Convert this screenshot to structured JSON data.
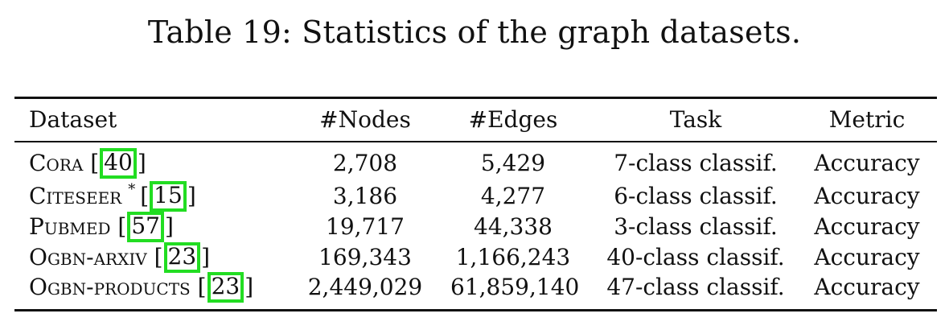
{
  "caption": "Table 19: Statistics of the graph datasets.",
  "columns": {
    "dataset": "Dataset",
    "nodes": "#Nodes",
    "edges": "#Edges",
    "task": "Task",
    "metric": "Metric"
  },
  "rows": [
    {
      "name": "Cora",
      "sup": "",
      "cite": "40",
      "nodes": "2,708",
      "edges": "5,429",
      "task": "7-class classif.",
      "metric": "Accuracy"
    },
    {
      "name": "Citeseer",
      "sup": "*",
      "cite": "15",
      "nodes": "3,186",
      "edges": "4,277",
      "task": "6-class classif.",
      "metric": "Accuracy"
    },
    {
      "name": "Pubmed",
      "sup": "",
      "cite": "57",
      "nodes": "19,717",
      "edges": "44,338",
      "task": "3-class classif.",
      "metric": "Accuracy"
    },
    {
      "name": "Ogbn-arxiv",
      "sup": "",
      "cite": "23",
      "nodes": "169,343",
      "edges": "1,166,243",
      "task": "40-class classif.",
      "metric": "Accuracy"
    },
    {
      "name": "Ogbn-products",
      "sup": "",
      "cite": "23",
      "nodes": "2,449,029",
      "edges": "61,859,140",
      "task": "47-class classif.",
      "metric": "Accuracy"
    }
  ],
  "colors": {
    "citation_highlight": "#22dd22",
    "text": "#111111"
  }
}
